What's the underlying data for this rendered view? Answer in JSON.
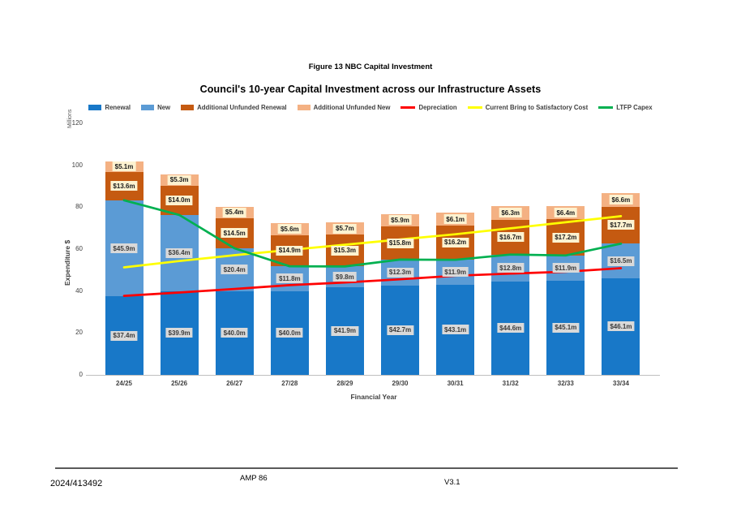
{
  "page": {
    "caption": "Figure 13 NBC Capital Investment"
  },
  "chart_data": {
    "type": "bar",
    "subtype": "stacked-bars-with-line-overlays",
    "title": "Council's 10-year Capital Investment across our Infrastructure Assets",
    "xlabel": "Financial Year",
    "ylabel": "Expenditure $",
    "y_units_label": "Millions",
    "ylim": [
      0,
      120
    ],
    "yticks": [
      0,
      20,
      40,
      60,
      80,
      100,
      120
    ],
    "grid": false,
    "legend_position": "top",
    "categories": [
      "24/25",
      "25/26",
      "26/27",
      "27/28",
      "28/29",
      "29/30",
      "30/31",
      "31/32",
      "32/33",
      "33/34"
    ],
    "series": [
      {
        "name": "Renewal",
        "type": "bar",
        "color": "#1878C8",
        "values": [
          37.4,
          39.9,
          40.0,
          40.0,
          41.9,
          42.7,
          43.1,
          44.6,
          45.1,
          46.1
        ],
        "labels": [
          "$37.4m",
          "$39.9m",
          "$40.0m",
          "$40.0m",
          "$41.9m",
          "$42.7m",
          "$43.1m",
          "$44.6m",
          "$45.1m",
          "$46.1m"
        ],
        "label_bg": "#D9D9D9",
        "label_color": "#3B3B3B"
      },
      {
        "name": "New",
        "type": "bar",
        "color": "#5B9BD5",
        "values": [
          45.9,
          36.4,
          20.4,
          11.8,
          9.8,
          12.3,
          11.9,
          12.8,
          11.9,
          16.5
        ],
        "labels": [
          "$45.9m",
          "$36.4m",
          "$20.4m",
          "$11.8m",
          "$9.8m",
          "$12.3m",
          "$11.9m",
          "$12.8m",
          "$11.9m",
          "$16.5m"
        ],
        "label_bg": "#D9D9D9",
        "label_color": "#3B3B3B"
      },
      {
        "name": "Additional Unfunded Renewal",
        "type": "bar",
        "color": "#C55A11",
        "values": [
          13.6,
          14.0,
          14.5,
          14.9,
          15.3,
          15.8,
          16.2,
          16.7,
          17.2,
          17.7
        ],
        "labels": [
          "$13.6m",
          "$14.0m",
          "$14.5m",
          "$14.9m",
          "$15.3m",
          "$15.8m",
          "$16.2m",
          "$16.7m",
          "$17.2m",
          "$17.7m"
        ],
        "label_bg": "#FDF2D0",
        "label_color": "#1A1A1A"
      },
      {
        "name": "Additional Unfunded New",
        "type": "bar",
        "color": "#F4B183",
        "values": [
          5.1,
          5.3,
          5.4,
          5.6,
          5.7,
          5.9,
          6.1,
          6.3,
          6.4,
          6.6
        ],
        "labels": [
          "$5.1m",
          "$5.3m",
          "$5.4m",
          "$5.6m",
          "$5.7m",
          "$5.9m",
          "$6.1m",
          "$6.3m",
          "$6.4m",
          "$6.6m"
        ],
        "label_bg": "#FDF2D0",
        "label_color": "#1A1A1A"
      },
      {
        "name": "Depreciation",
        "type": "line",
        "color": "#FF0000",
        "values": [
          37.7,
          39.3,
          41.0,
          42.8,
          44.1,
          45.6,
          47.3,
          48.3,
          49.2,
          50.9
        ]
      },
      {
        "name": "Current Bring to Satisfactory Cost",
        "type": "line",
        "color": "#FFFF00",
        "values": [
          51.3,
          54.3,
          57.1,
          59.6,
          62.1,
          64.6,
          67.1,
          69.9,
          72.8,
          75.7
        ]
      },
      {
        "name": "LTFP Capex",
        "type": "line",
        "color": "#00B050",
        "values": [
          83.3,
          76.3,
          60.4,
          51.8,
          51.7,
          55.0,
          54.9,
          57.4,
          57.0,
          62.6
        ]
      }
    ]
  },
  "footer": {
    "doc_number": "2024/413492",
    "center_text": "AMP 86",
    "version": "V3.1"
  }
}
